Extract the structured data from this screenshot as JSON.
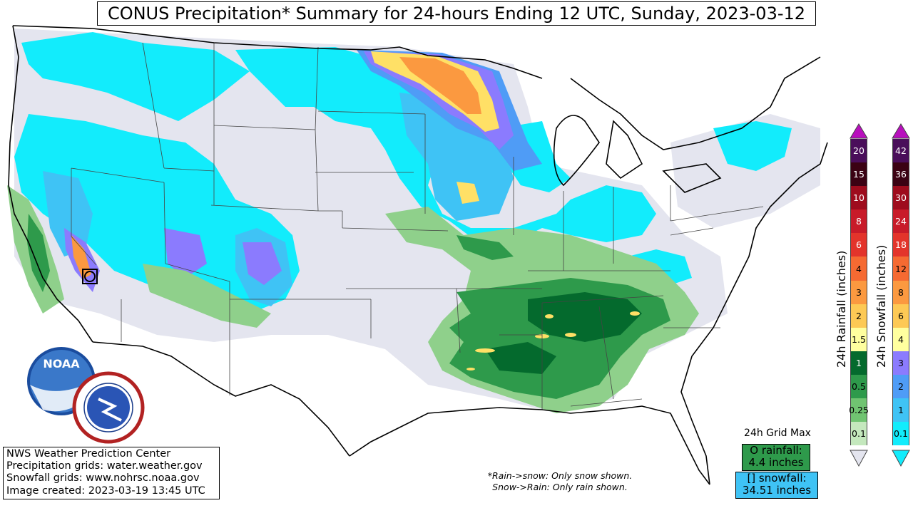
{
  "title": "CONUS Precipitation* Summary for 24-hours Ending 12 UTC, Sunday, 2023-03-12",
  "credits": {
    "line1": "NWS Weather Prediction Center",
    "line2": "Precipitation grids: water.weather.gov",
    "line3": "Snowfall grids: www.nohrsc.noaa.gov",
    "line4": "Image created: 2023-03-19 13:45 UTC"
  },
  "note": {
    "line1": "*Rain->snow: Only snow shown.",
    "line2": "Snow->Rain: Only rain shown."
  },
  "grid_max": {
    "title": "24h Grid Max",
    "rain_label": "O rainfall:",
    "rain_value": "4.4 inches",
    "snow_label": "[] snowfall:",
    "snow_value": "34.51 inches"
  },
  "rain_scale": {
    "label": "24h Rainfall (inches)",
    "values": [
      "20",
      "15",
      "10",
      "8",
      "6",
      "4",
      "3",
      "2",
      "1.5",
      "1",
      "0.5",
      "0.25",
      "0.1"
    ],
    "colors": [
      "#4a0e5a",
      "#3b0213",
      "#9e0c1d",
      "#c81b29",
      "#e3342b",
      "#f56a32",
      "#fb9940",
      "#fdc955",
      "#ffff9f",
      "#046a2d",
      "#2e9a4b",
      "#70c471",
      "#c4e8bd"
    ]
  },
  "snow_scale": {
    "label": "24h Snowfall (inches)",
    "values": [
      "42",
      "36",
      "30",
      "24",
      "18",
      "12",
      "8",
      "6",
      "4",
      "3",
      "2",
      "1",
      "0.1"
    ],
    "colors": [
      "#4a0e5a",
      "#3b0213",
      "#9e0c1d",
      "#c81b29",
      "#e3342b",
      "#f56a32",
      "#fb9940",
      "#fdc955",
      "#ffff9f",
      "#8b7bfe",
      "#4f9cf6",
      "#3fc3f5",
      "#12ecfc"
    ]
  },
  "logos": {
    "noaa": "NOAA",
    "nws": "NATIONAL WEATHER SERVICE"
  },
  "colors": {
    "light_gray": "#e4e5ef",
    "cyan": "#12ecfc",
    "light_blue": "#3fc3f5",
    "blue": "#4f9cf6",
    "purple": "#8b7bfe",
    "yellow": "#ffe066",
    "orange": "#fb9940",
    "light_green": "#8fd08b",
    "green": "#2e9a4b",
    "dark_green": "#046a2d"
  }
}
